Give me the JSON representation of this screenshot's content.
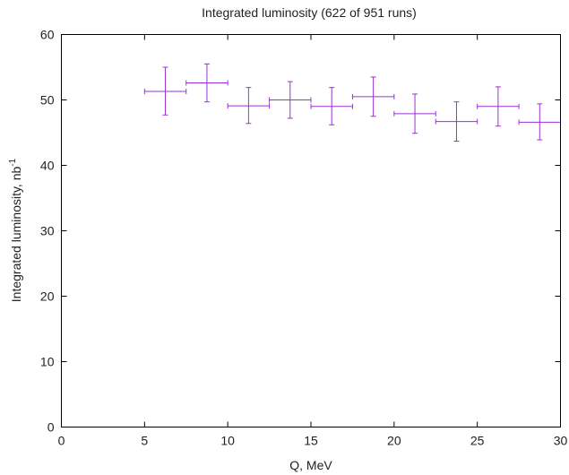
{
  "chart_data": {
    "type": "scatter",
    "title": "Integrated luminosity (622 of 951 runs)",
    "xlabel": "Q, MeV",
    "ylabel_main": "Integrated luminosity, nb",
    "ylabel_sup": "-1",
    "xlim": [
      0,
      30
    ],
    "ylim": [
      0,
      60
    ],
    "xticks": [
      0,
      5,
      10,
      15,
      20,
      25,
      30
    ],
    "yticks": [
      0,
      10,
      20,
      30,
      40,
      50,
      60
    ],
    "xtick_labels": [
      "0",
      "5",
      "10",
      "15",
      "20",
      "25",
      "30"
    ],
    "ytick_labels": [
      "0",
      "10",
      "20",
      "30",
      "40",
      "50",
      "60"
    ],
    "grid": false,
    "series": [
      {
        "color": "#9b30d9",
        "points": [
          {
            "x": 6.25,
            "xlo": 5.0,
            "xhi": 7.5,
            "y": 51.3,
            "ylo": 47.7,
            "yhi": 55.0
          },
          {
            "x": 8.75,
            "xlo": 7.5,
            "xhi": 10.0,
            "y": 52.6,
            "ylo": 49.7,
            "yhi": 55.5
          },
          {
            "x": 11.25,
            "xlo": 10.0,
            "xhi": 12.5,
            "y": 49.1,
            "ylo": 46.4,
            "yhi": 51.9
          },
          {
            "x": 13.75,
            "xlo": 12.5,
            "xhi": 15.0,
            "y": 50.0,
            "ylo": 47.2,
            "yhi": 52.8
          },
          {
            "x": 16.25,
            "xlo": 15.0,
            "xhi": 17.5,
            "y": 49.0,
            "ylo": 46.2,
            "yhi": 51.9
          },
          {
            "x": 18.75,
            "xlo": 17.5,
            "xhi": 20.0,
            "y": 50.5,
            "ylo": 47.5,
            "yhi": 53.5
          },
          {
            "x": 21.25,
            "xlo": 20.0,
            "xhi": 22.5,
            "y": 47.9,
            "ylo": 44.9,
            "yhi": 50.9
          },
          {
            "x": 23.75,
            "xlo": 22.5,
            "xhi": 25.0,
            "y": 46.7,
            "ylo": 43.7,
            "yhi": 49.7
          },
          {
            "x": 26.25,
            "xlo": 25.0,
            "xhi": 27.5,
            "y": 49.0,
            "ylo": 46.0,
            "yhi": 52.0
          },
          {
            "x": 28.75,
            "xlo": 27.5,
            "xhi": 30.0,
            "y": 46.6,
            "ylo": 43.9,
            "yhi": 49.4
          }
        ]
      }
    ]
  }
}
